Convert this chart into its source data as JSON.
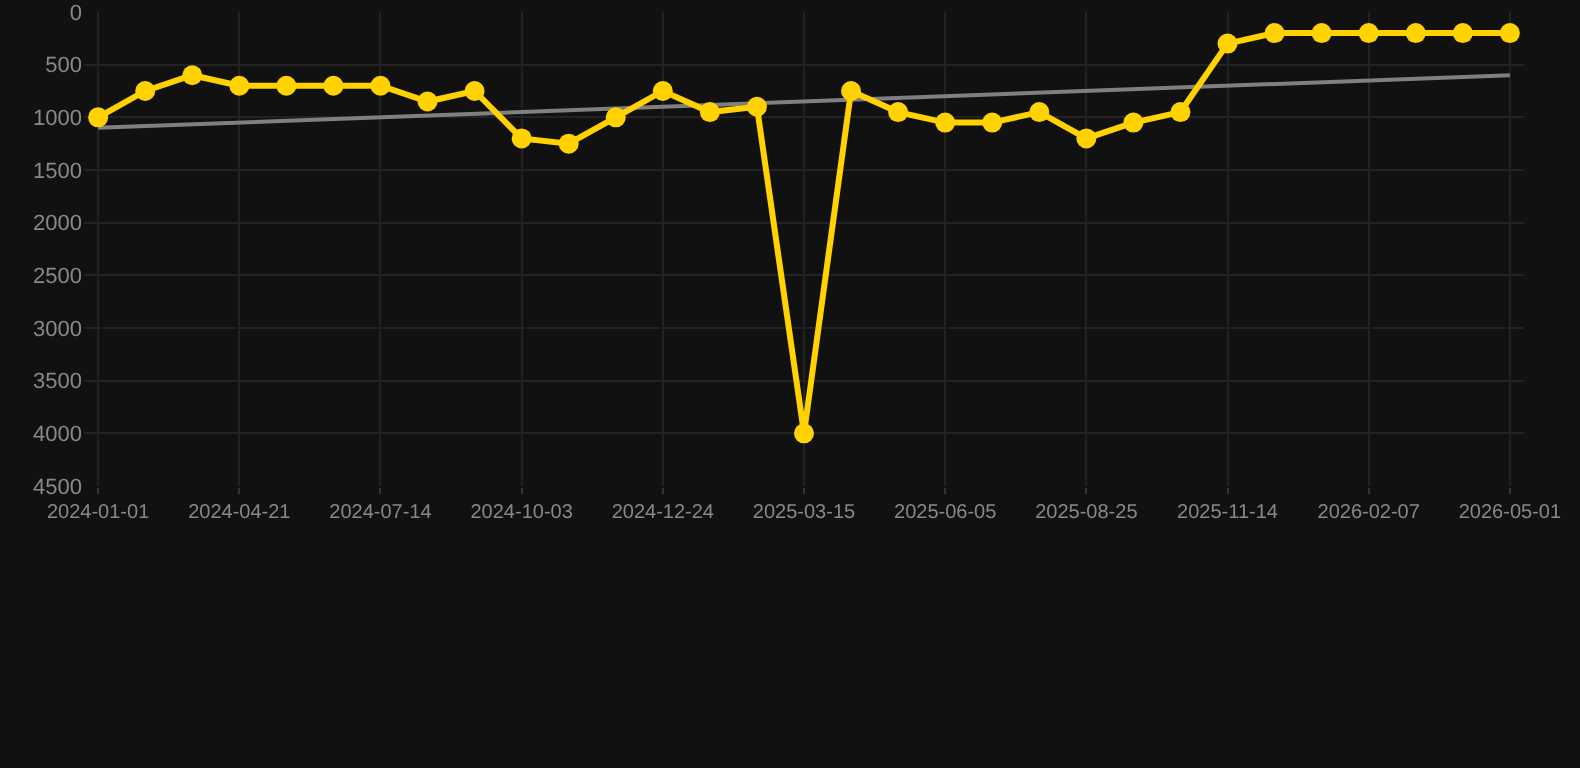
{
  "chart_data": {
    "type": "line",
    "categories": [
      "2024-01-01",
      null,
      null,
      "2024-04-21",
      null,
      null,
      "2024-07-14",
      null,
      null,
      "2024-10-03",
      null,
      null,
      "2024-12-24",
      null,
      null,
      "2025-03-15",
      null,
      null,
      "2025-06-05",
      null,
      null,
      "2025-08-25",
      null,
      null,
      "2025-11-14",
      null,
      null,
      "2026-02-07",
      null,
      null,
      "2026-05-01"
    ],
    "series": [
      {
        "color": "#ffd200",
        "marker": "circle",
        "values": [
          1000,
          750,
          600,
          700,
          700,
          700,
          700,
          850,
          750,
          1200,
          1250,
          1000,
          750,
          950,
          900,
          4000,
          750,
          950,
          1050,
          1050,
          950,
          1200,
          1050,
          950,
          300,
          200,
          200,
          200,
          200,
          200,
          200
        ]
      },
      {
        "color": "#808080",
        "marker": "none",
        "values": [
          1100,
          null,
          null,
          null,
          null,
          null,
          null,
          null,
          null,
          null,
          null,
          null,
          null,
          null,
          null,
          null,
          null,
          null,
          null,
          null,
          null,
          null,
          null,
          null,
          null,
          null,
          null,
          null,
          null,
          null,
          600
        ]
      }
    ],
    "ylim": [
      4500,
      0
    ],
    "yticks": [
      0,
      500,
      1000,
      1500,
      2000,
      2500,
      3000,
      3500,
      4000,
      4500
    ],
    "grid": true
  }
}
